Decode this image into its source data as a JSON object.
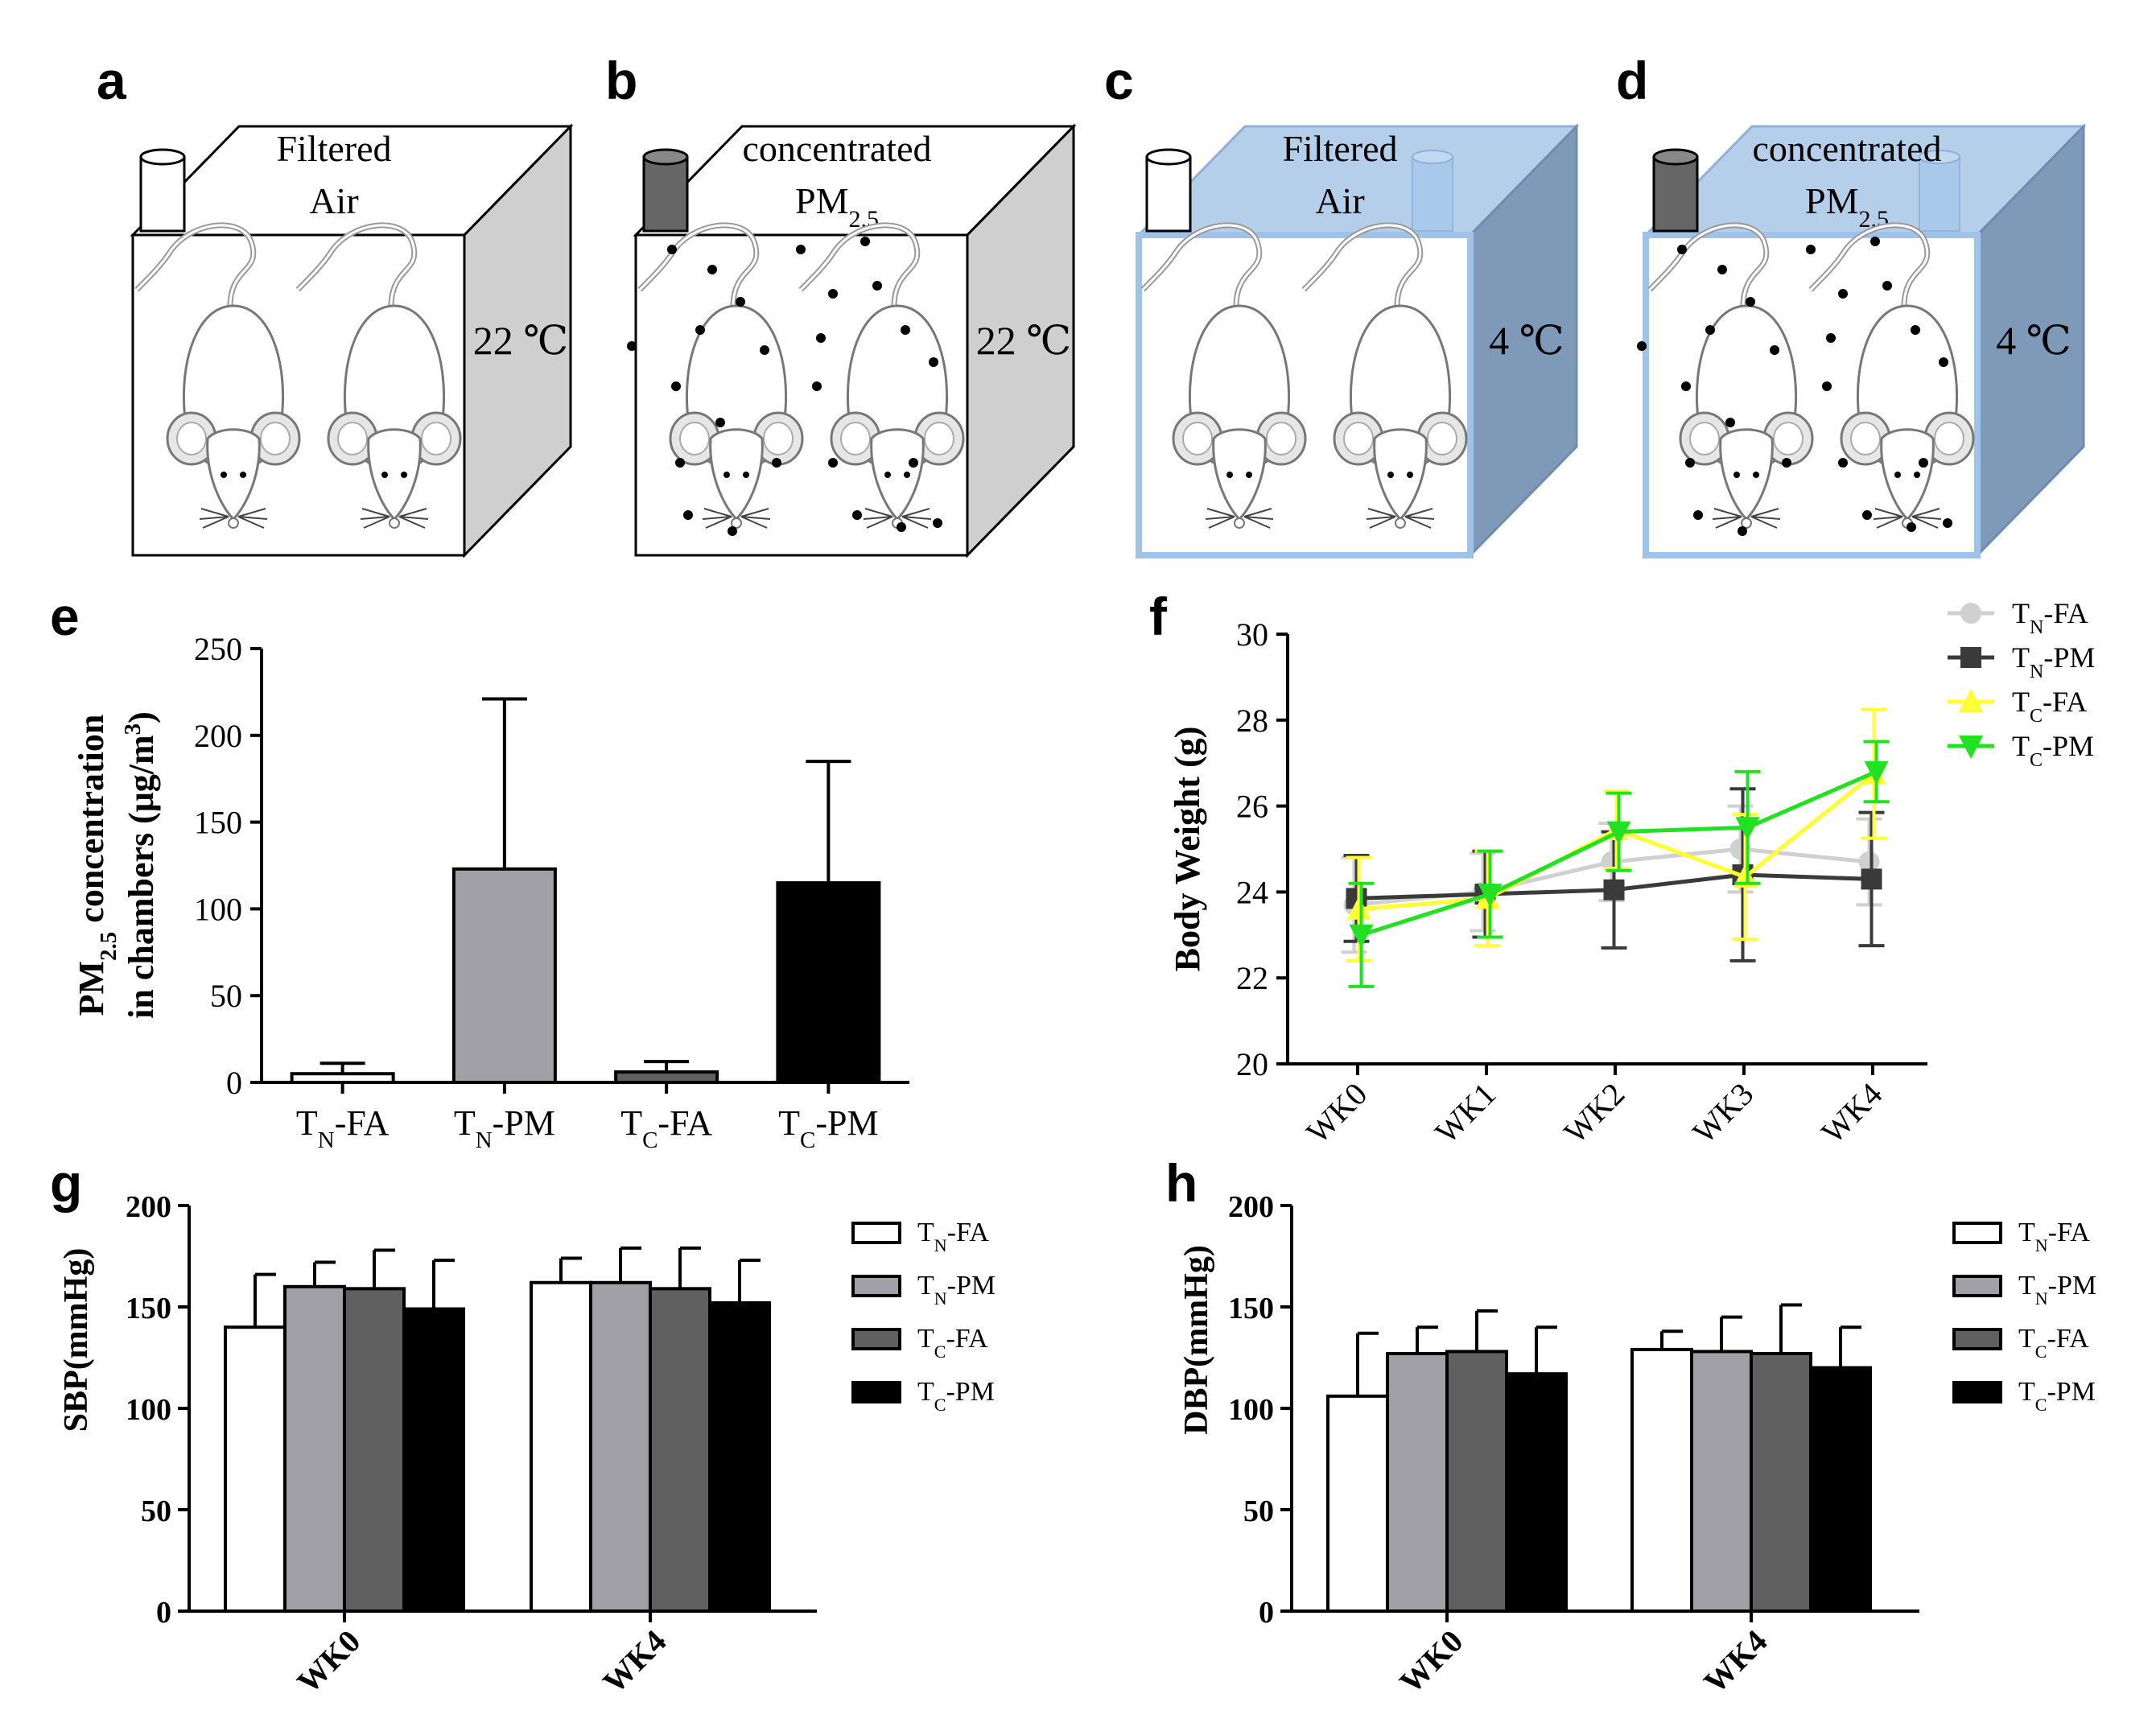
{
  "panel_letters": {
    "a": "a",
    "b": "b",
    "c": "c",
    "d": "d",
    "e": "e",
    "f": "f",
    "g": "g",
    "h": "h"
  },
  "chambers": [
    {
      "id": "a",
      "line1": "Filtered",
      "line2": "Air",
      "sub": "",
      "temp": "22 ℃",
      "cold": false,
      "pm": false
    },
    {
      "id": "b",
      "line1": "concentrated",
      "line2": "PM",
      "sub": "2.5",
      "temp": "22 ℃",
      "cold": false,
      "pm": true
    },
    {
      "id": "c",
      "line1": "Filtered",
      "line2": "Air",
      "sub": "",
      "temp": "4 ℃",
      "cold": true,
      "pm": false
    },
    {
      "id": "d",
      "line1": "concentrated",
      "line2": "PM",
      "sub": "2.5",
      "temp": "4 ℃",
      "cold": true,
      "pm": true
    }
  ],
  "colors": {
    "tn_fa": "#d0d0d0",
    "tn_pm": "#3a3a3a",
    "tc_fa": "#ffff33",
    "tc_pm": "#22e022",
    "bar_gray": "#a0a0a6",
    "bar_dark": "#606060",
    "black": "#000000",
    "cold_front": "#c4d8ee",
    "cold_side": "#7f9ab8",
    "cold_top": "#b5cfea",
    "warm_side": "#cfcfcf"
  },
  "chart_data": [
    {
      "id": "e",
      "type": "bar",
      "title": "",
      "ylabel_line1_pre": "PM",
      "ylabel_line1_sub": "2.5",
      "ylabel_line1_post": " concentration",
      "ylabel_line2_pre": "in chambers (μg/m",
      "ylabel_line2_sup": "3",
      "ylabel_line2_post": ")",
      "ylim": [
        0,
        250
      ],
      "yticks": [
        0,
        50,
        100,
        150,
        200,
        250
      ],
      "categories": [
        {
          "pre": "T",
          "sub": "N",
          "post": "-FA"
        },
        {
          "pre": "T",
          "sub": "N",
          "post": "-PM"
        },
        {
          "pre": "T",
          "sub": "C",
          "post": "-FA"
        },
        {
          "pre": "T",
          "sub": "C",
          "post": "-PM"
        }
      ],
      "values": [
        5,
        123,
        6,
        115
      ],
      "errors": [
        6,
        98,
        6,
        70
      ],
      "fills": [
        "#ffffff",
        "#a0a0a6",
        "#606060",
        "#000000"
      ]
    },
    {
      "id": "f",
      "type": "line",
      "ylabel": "Body Weight (g)",
      "ylim": [
        20,
        30
      ],
      "yticks": [
        20,
        22,
        24,
        26,
        28,
        30
      ],
      "x": [
        "WK0",
        "WK1",
        "WK2",
        "WK3",
        "WK4"
      ],
      "series": [
        {
          "pre": "T",
          "sub": "N",
          "post": "-FA",
          "marker": "circle",
          "color": "#d0d0d0",
          "values": [
            23.7,
            24.0,
            24.7,
            25.0,
            24.7
          ],
          "errors": [
            1.1,
            0.9,
            0.9,
            1.0,
            1.0
          ]
        },
        {
          "pre": "T",
          "sub": "N",
          "post": "-PM",
          "marker": "square",
          "color": "#3a3a3a",
          "values": [
            23.85,
            23.95,
            24.05,
            24.4,
            24.3
          ],
          "errors": [
            1.0,
            1.0,
            1.35,
            2.0,
            1.55
          ]
        },
        {
          "pre": "T",
          "sub": "C",
          "post": "-FA",
          "marker": "triangle-up",
          "color": "#ffff33",
          "values": [
            23.6,
            23.85,
            25.45,
            24.35,
            26.75
          ],
          "errors": [
            1.2,
            1.1,
            0.9,
            1.45,
            1.5
          ]
        },
        {
          "pre": "T",
          "sub": "C",
          "post": "-PM",
          "marker": "triangle-down",
          "color": "#22e022",
          "values": [
            23.0,
            23.95,
            25.4,
            25.5,
            26.8
          ],
          "errors": [
            1.2,
            1.0,
            0.9,
            1.3,
            0.7
          ]
        }
      ]
    },
    {
      "id": "g",
      "type": "bar",
      "ylabel": "SBP(mmHg)",
      "ylim": [
        0,
        200
      ],
      "yticks": [
        0,
        50,
        100,
        150,
        200
      ],
      "categories": [
        "WK0",
        "WK4"
      ],
      "series": [
        {
          "pre": "T",
          "sub": "N",
          "post": "-FA",
          "fill": "#ffffff",
          "values": [
            140,
            162
          ],
          "errors": [
            26,
            12
          ]
        },
        {
          "pre": "T",
          "sub": "N",
          "post": "-PM",
          "fill": "#a0a0a6",
          "values": [
            160,
            162
          ],
          "errors": [
            12,
            17
          ]
        },
        {
          "pre": "T",
          "sub": "C",
          "post": "-FA",
          "fill": "#606060",
          "values": [
            159,
            159
          ],
          "errors": [
            19,
            20
          ]
        },
        {
          "pre": "T",
          "sub": "C",
          "post": "-PM",
          "fill": "#000000",
          "values": [
            149,
            152
          ],
          "errors": [
            24,
            21
          ]
        }
      ]
    },
    {
      "id": "h",
      "type": "bar",
      "ylabel": "DBP(mmHg)",
      "ylim": [
        0,
        200
      ],
      "yticks": [
        0,
        50,
        100,
        150,
        200
      ],
      "categories": [
        "WK0",
        "WK4"
      ],
      "series": [
        {
          "pre": "T",
          "sub": "N",
          "post": "-FA",
          "fill": "#ffffff",
          "values": [
            106,
            129
          ],
          "errors": [
            31,
            9
          ]
        },
        {
          "pre": "T",
          "sub": "N",
          "post": "-PM",
          "fill": "#a0a0a6",
          "values": [
            127,
            128
          ],
          "errors": [
            13,
            17
          ]
        },
        {
          "pre": "T",
          "sub": "C",
          "post": "-FA",
          "fill": "#606060",
          "values": [
            128,
            127
          ],
          "errors": [
            20,
            24
          ]
        },
        {
          "pre": "T",
          "sub": "C",
          "post": "-PM",
          "fill": "#000000",
          "values": [
            117,
            120
          ],
          "errors": [
            23,
            20
          ]
        }
      ]
    }
  ]
}
